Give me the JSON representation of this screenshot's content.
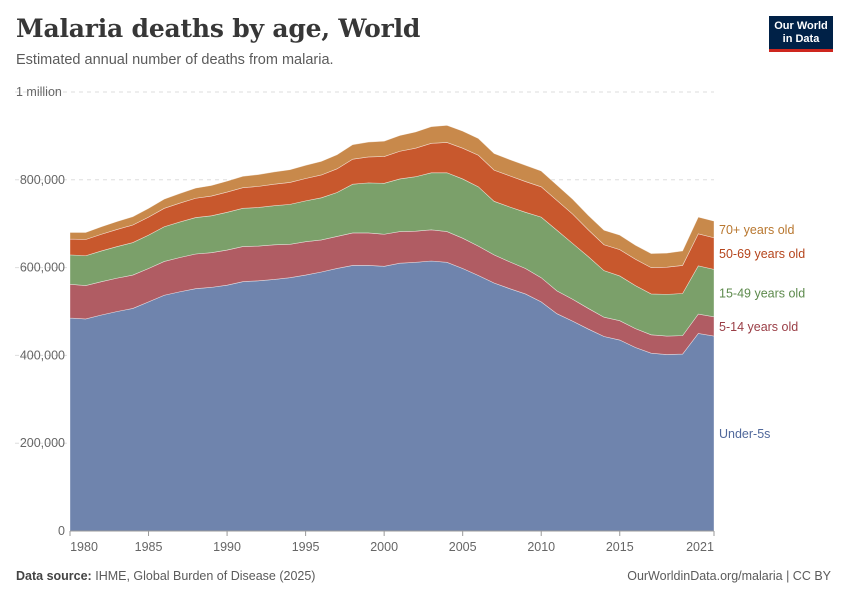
{
  "header": {
    "title": "Malaria deaths by age, World",
    "subtitle": "Estimated annual number of deaths from malaria."
  },
  "logo": {
    "line1": "Our World",
    "line2": "in Data"
  },
  "footer": {
    "source_label": "Data source:",
    "source_text": "IHME, Global Burden of Disease (2025)",
    "link": "OurWorldinData.org/malaria | CC BY"
  },
  "chart_data": {
    "type": "area",
    "stacked": true,
    "x": [
      1980,
      1981,
      1982,
      1983,
      1984,
      1985,
      1986,
      1987,
      1988,
      1989,
      1990,
      1991,
      1992,
      1993,
      1994,
      1995,
      1996,
      1997,
      1998,
      1999,
      2000,
      2001,
      2002,
      2003,
      2004,
      2005,
      2006,
      2007,
      2008,
      2009,
      2010,
      2011,
      2012,
      2013,
      2014,
      2015,
      2016,
      2017,
      2018,
      2019,
      2020,
      2021
    ],
    "xlim": [
      1980,
      2021
    ],
    "ylim": [
      0,
      1000000
    ],
    "x_ticks": [
      "1980",
      "1985",
      "1990",
      "1995",
      "2000",
      "2005",
      "2010",
      "2015",
      "2021"
    ],
    "x_tick_values": [
      1980,
      1985,
      1990,
      1995,
      2000,
      2005,
      2010,
      2015,
      2021
    ],
    "y_ticks": [
      "0",
      "200,000",
      "400,000",
      "600,000",
      "800,000",
      "1 million"
    ],
    "y_tick_values": [
      0,
      200000,
      400000,
      600000,
      800000,
      1000000
    ],
    "grid": "horizontal dashed",
    "legend_placement": "right, inline labels",
    "series": [
      {
        "name": "Under-5s",
        "color": "#6f84ad",
        "values": [
          485000,
          483000,
          492000,
          500000,
          507000,
          522000,
          537000,
          545000,
          552000,
          555000,
          560000,
          568000,
          570000,
          573000,
          577000,
          583000,
          590000,
          598000,
          605000,
          605000,
          603000,
          610000,
          612000,
          615000,
          612000,
          598000,
          582000,
          565000,
          552000,
          540000,
          522000,
          495000,
          478000,
          460000,
          443000,
          435000,
          418000,
          405000,
          402000,
          403000,
          450000,
          444000
        ]
      },
      {
        "name": "5-14 years old",
        "color": "#b05c63",
        "values": [
          77000,
          76000,
          76000,
          76000,
          76000,
          76000,
          77000,
          78000,
          79000,
          79000,
          80000,
          80000,
          79000,
          79000,
          76000,
          76000,
          73000,
          73000,
          74000,
          74000,
          73000,
          72000,
          71000,
          71000,
          70000,
          69000,
          67000,
          64000,
          61000,
          58000,
          55000,
          52000,
          50000,
          47000,
          44000,
          44000,
          43000,
          42000,
          42000,
          42000,
          44000,
          44000
        ]
      },
      {
        "name": "15-49 years old",
        "color": "#7ba06a",
        "values": [
          67000,
          68000,
          70000,
          72000,
          74000,
          76000,
          79000,
          81000,
          83000,
          84000,
          86000,
          87000,
          88000,
          89000,
          91000,
          93000,
          96000,
          100000,
          111000,
          114000,
          116000,
          120000,
          124000,
          130000,
          134000,
          135000,
          135000,
          122000,
          125000,
          128000,
          138000,
          138000,
          127000,
          118000,
          106000,
          102000,
          98000,
          93000,
          95000,
          96000,
          110000,
          108000
        ]
      },
      {
        "name": "50-69 years old",
        "color": "#c8582d",
        "values": [
          36000,
          37000,
          38000,
          39000,
          40000,
          41000,
          42000,
          43000,
          44000,
          45000,
          46000,
          47000,
          48000,
          49000,
          50000,
          51000,
          52000,
          54000,
          57000,
          59000,
          61000,
          63000,
          65000,
          67000,
          69000,
          70000,
          72000,
          71000,
          71000,
          70000,
          69000,
          68000,
          67000,
          61000,
          59000,
          60000,
          60000,
          60000,
          62000,
          64000,
          73000,
          72000
        ]
      },
      {
        "name": "70+ years old",
        "color": "#c8894b",
        "values": [
          15000,
          16000,
          17000,
          18000,
          19000,
          20000,
          21000,
          22000,
          23000,
          24000,
          25000,
          26000,
          27000,
          28000,
          29000,
          30000,
          31000,
          32000,
          33000,
          34000,
          35000,
          36000,
          37000,
          38000,
          39000,
          39000,
          38000,
          38000,
          37000,
          37000,
          36000,
          35000,
          34000,
          33000,
          33000,
          33000,
          32000,
          32000,
          32000,
          33000,
          38000,
          38000
        ]
      }
    ]
  }
}
